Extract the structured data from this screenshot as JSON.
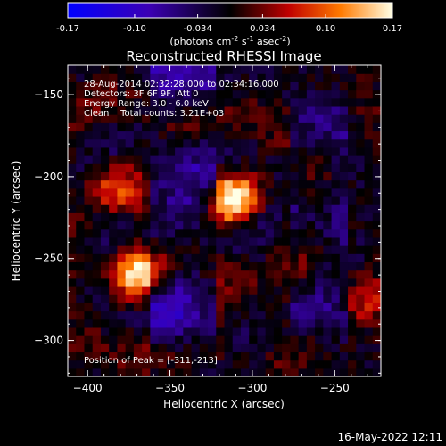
{
  "chart_data": {
    "type": "heatmap",
    "title": "Reconstructed RHESSI Image",
    "xlabel": "Heliocentric X (arcsec)",
    "ylabel": "Heliocentric Y (arcsec)",
    "xlim": [
      -412,
      -222
    ],
    "ylim": [
      -322,
      -132
    ],
    "xticks": [
      -400,
      -350,
      -300,
      -250
    ],
    "yticks": [
      -150,
      -200,
      -250,
      -300
    ],
    "colorbar": {
      "range": [
        -0.17,
        0.17
      ],
      "ticks": [
        -0.17,
        -0.1,
        -0.034,
        0.034,
        0.1,
        0.17
      ],
      "tick_labels": [
        "-0.17",
        "-0.10",
        "-0.034",
        "0.034",
        "0.10",
        "0.17"
      ],
      "units_text": "(photons cm",
      "units_exp1": "-2",
      "units_mid": " s",
      "units_exp2": "-1",
      "units_mid2": " asec",
      "units_exp3": "-2",
      "units_end": ")"
    },
    "annotations": [
      "28-Aug-2014 02:32:28.000 to 02:34:16.000",
      "Detectors: 3F 6F 9F, Att 0",
      "Energy Range: 3.0 - 6.0 keV",
      "Clean    Total counts: 3.21E+03"
    ],
    "peak_label": "Position of Peak = [-311,-213]",
    "sources": [
      {
        "x": -311,
        "y": -213,
        "value": 0.17
      },
      {
        "x": -370,
        "y": -260,
        "value": 0.15
      },
      {
        "x": -383,
        "y": -207,
        "value": 0.07
      },
      {
        "x": -230,
        "y": -275,
        "value": 0.05
      }
    ],
    "background": {
      "negative_band_x": [
        -360,
        -322
      ],
      "negative_value": -0.06
    },
    "timestamp": "16-May-2022 12:11"
  }
}
